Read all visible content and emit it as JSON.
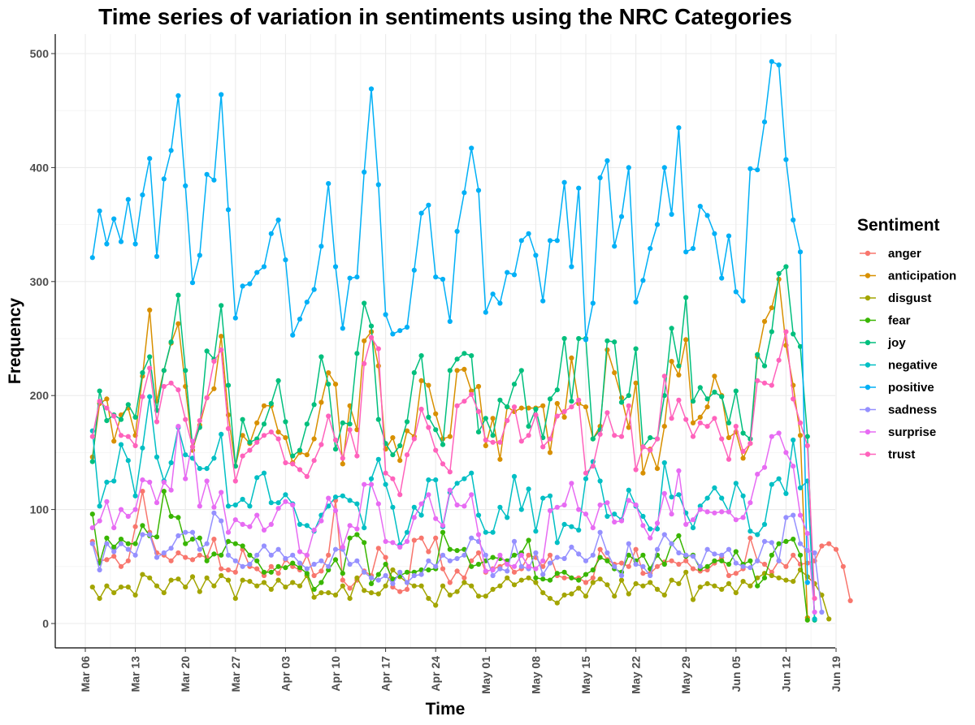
{
  "chart_data": {
    "type": "line",
    "title": "Time series of variation in sentiments using the NRC Categories",
    "xlabel": "Time",
    "ylabel": "Frequency",
    "x_start": "2022-03-07",
    "ylim": [
      0,
      500
    ],
    "y_ticks": [
      0,
      100,
      200,
      300,
      400,
      500
    ],
    "x_tick_labels": [
      "Mar 06",
      "Mar 13",
      "Mar 20",
      "Mar 27",
      "Apr 03",
      "Apr 10",
      "Apr 17",
      "Apr 24",
      "May 01",
      "May 08",
      "May 15",
      "May 22",
      "May 29",
      "Jun 05",
      "Jun 12",
      "Jun 19"
    ],
    "x_tick_dates": [
      "2022-03-06",
      "2022-03-13",
      "2022-03-20",
      "2022-03-27",
      "2022-04-03",
      "2022-04-10",
      "2022-04-17",
      "2022-04-24",
      "2022-05-01",
      "2022-05-08",
      "2022-05-15",
      "2022-05-22",
      "2022-05-29",
      "2022-06-05",
      "2022-06-12",
      "2022-06-19"
    ],
    "grid": true,
    "legend_title": "Sentiment",
    "legend_position": "right",
    "series": [
      {
        "name": "anger",
        "color": "#F8766D",
        "values": [
          72,
          55,
          56,
          59,
          50,
          55,
          85,
          116,
          80,
          62,
          60,
          55,
          62,
          58,
          56,
          60,
          58,
          74,
          48,
          47,
          45,
          65,
          50,
          48,
          42,
          50,
          44,
          56,
          50,
          47,
          60,
          42,
          46,
          60,
          108,
          38,
          31,
          38,
          46,
          42,
          66,
          58,
          32,
          28,
          30,
          73,
          75,
          63,
          75,
          48,
          36,
          46,
          40,
          55,
          62,
          45,
          48,
          50,
          54,
          45,
          48,
          60,
          58,
          50,
          60,
          42,
          40,
          40,
          40,
          36,
          40,
          65,
          56,
          52,
          53,
          50,
          65,
          44,
          44,
          50,
          54,
          55,
          52,
          55,
          48,
          46,
          47,
          53,
          58,
          42,
          44,
          48,
          75,
          55,
          52,
          45,
          55,
          50,
          60,
          52,
          53,
          55,
          68,
          70,
          65,
          50,
          20
        ]
      },
      {
        "name": "anticipation",
        "color": "#D89000",
        "values": [
          146,
          193,
          197,
          160,
          183,
          189,
          165,
          217,
          275,
          195,
          222,
          246,
          263,
          208,
          152,
          174,
          198,
          206,
          252,
          183,
          138,
          165,
          158,
          176,
          191,
          191,
          168,
          163,
          141,
          150,
          148,
          162,
          194,
          220,
          210,
          140,
          191,
          170,
          248,
          256,
          226,
          153,
          163,
          143,
          169,
          164,
          213,
          209,
          184,
          162,
          164,
          222,
          223,
          204,
          208,
          156,
          180,
          144,
          190,
          186,
          189,
          189,
          189,
          191,
          150,
          193,
          181,
          233,
          193,
          190,
          162,
          173,
          240,
          220,
          198,
          172,
          211,
          132,
          153,
          136,
          173,
          230,
          218,
          249,
          176,
          181,
          190,
          217,
          200,
          163,
          168,
          145,
          158,
          234,
          265,
          277,
          302,
          244,
          209,
          165,
          5
        ]
      },
      {
        "name": "disgust",
        "color": "#A3A500",
        "values": [
          32,
          22,
          33,
          27,
          32,
          32,
          25,
          43,
          40,
          33,
          27,
          38,
          39,
          32,
          41,
          28,
          40,
          33,
          42,
          38,
          22,
          38,
          37,
          33,
          36,
          30,
          38,
          32,
          36,
          33,
          42,
          23,
          27,
          27,
          25,
          33,
          22,
          40,
          29,
          27,
          26,
          33,
          47,
          41,
          36,
          33,
          33,
          22,
          16,
          33,
          25,
          28,
          36,
          33,
          24,
          24,
          30,
          33,
          40,
          34,
          38,
          40,
          36,
          27,
          22,
          18,
          25,
          26,
          31,
          24,
          36,
          39,
          34,
          24,
          38,
          26,
          35,
          33,
          36,
          30,
          25,
          38,
          35,
          45,
          21,
          32,
          35,
          33,
          30,
          35,
          27,
          37,
          33,
          40,
          44,
          42,
          40,
          38,
          37,
          47,
          41,
          35,
          25,
          4
        ]
      },
      {
        "name": "fear",
        "color": "#39B600",
        "values": [
          96,
          53,
          75,
          67,
          74,
          70,
          70,
          86,
          77,
          76,
          116,
          94,
          93,
          70,
          74,
          75,
          55,
          61,
          60,
          72,
          70,
          68,
          60,
          55,
          45,
          45,
          50,
          49,
          53,
          49,
          44,
          30,
          36,
          47,
          56,
          44,
          75,
          78,
          71,
          35,
          43,
          52,
          39,
          42,
          45,
          45,
          47,
          47,
          48,
          80,
          65,
          64,
          65,
          50,
          52,
          55,
          58,
          57,
          55,
          60,
          62,
          73,
          40,
          39,
          38,
          44,
          45,
          40,
          38,
          43,
          47,
          58,
          55,
          48,
          45,
          60,
          55,
          60,
          48,
          60,
          52,
          70,
          77,
          59,
          60,
          48,
          50,
          55,
          55,
          52,
          63,
          52,
          55,
          33,
          40,
          60,
          70,
          72,
          74,
          60,
          3
        ]
      },
      {
        "name": "joy",
        "color": "#00BF7D",
        "values": [
          142,
          204,
          178,
          183,
          179,
          192,
          181,
          220,
          234,
          187,
          222,
          247,
          288,
          222,
          155,
          172,
          239,
          232,
          279,
          209,
          138,
          179,
          159,
          162,
          175,
          193,
          213,
          177,
          147,
          152,
          175,
          192,
          234,
          210,
          153,
          176,
          175,
          237,
          281,
          261,
          179,
          158,
          148,
          156,
          177,
          220,
          235,
          181,
          170,
          157,
          222,
          232,
          237,
          235,
          168,
          180,
          165,
          196,
          190,
          210,
          222,
          173,
          188,
          163,
          197,
          205,
          250,
          195,
          250,
          250,
          162,
          170,
          248,
          247,
          194,
          200,
          241,
          155,
          163,
          162,
          200,
          259,
          226,
          286,
          195,
          207,
          197,
          203,
          199,
          176,
          204,
          167,
          162,
          236,
          226,
          256,
          307,
          313,
          254,
          243,
          164,
          3
        ]
      },
      {
        "name": "negative",
        "color": "#00BFC4",
        "values": [
          169,
          103,
          124,
          125,
          157,
          143,
          112,
          154,
          199,
          146,
          125,
          141,
          172,
          148,
          145,
          136,
          136,
          145,
          166,
          103,
          104,
          109,
          103,
          128,
          132,
          106,
          106,
          113,
          105,
          87,
          86,
          81,
          95,
          103,
          111,
          112,
          108,
          105,
          84,
          127,
          144,
          122,
          102,
          69,
          80,
          102,
          95,
          126,
          126,
          85,
          115,
          123,
          127,
          132,
          95,
          80,
          80,
          102,
          93,
          129,
          100,
          118,
          81,
          110,
          112,
          71,
          87,
          85,
          82,
          127,
          142,
          125,
          94,
          96,
          91,
          117,
          103,
          94,
          83,
          83,
          141,
          111,
          113,
          97,
          84,
          103,
          110,
          119,
          110,
          98,
          123,
          112,
          81,
          78,
          87,
          122,
          127,
          114,
          161,
          119,
          125,
          4
        ]
      },
      {
        "name": "positive",
        "color": "#00B0F6",
        "values": [
          321,
          362,
          333,
          355,
          335,
          372,
          333,
          376,
          408,
          322,
          390,
          415,
          463,
          384,
          299,
          323,
          394,
          389,
          464,
          363,
          268,
          296,
          298,
          308,
          313,
          342,
          354,
          319,
          253,
          267,
          282,
          293,
          331,
          386,
          313,
          259,
          303,
          304,
          396,
          469,
          385,
          271,
          254,
          257,
          260,
          310,
          360,
          367,
          304,
          302,
          265,
          344,
          378,
          417,
          380,
          273,
          289,
          281,
          308,
          306,
          336,
          342,
          323,
          283,
          336,
          336,
          387,
          313,
          382,
          249,
          281,
          391,
          406,
          331,
          357,
          400,
          282,
          301,
          329,
          350,
          400,
          359,
          435,
          326,
          329,
          366,
          358,
          342,
          303,
          340,
          291,
          283,
          399,
          398,
          440,
          493,
          490,
          407,
          354,
          326,
          36
        ]
      },
      {
        "name": "sadness",
        "color": "#9590FF",
        "values": [
          70,
          47,
          70,
          63,
          70,
          65,
          60,
          78,
          78,
          58,
          62,
          66,
          77,
          80,
          80,
          65,
          70,
          97,
          90,
          60,
          55,
          50,
          52,
          60,
          68,
          60,
          65,
          57,
          60,
          53,
          48,
          52,
          55,
          50,
          65,
          65,
          52,
          55,
          45,
          40,
          38,
          42,
          35,
          45,
          36,
          42,
          43,
          55,
          50,
          60,
          55,
          57,
          60,
          75,
          72,
          60,
          42,
          48,
          46,
          72,
          50,
          48,
          62,
          43,
          53,
          58,
          57,
          67,
          61,
          55,
          60,
          80,
          62,
          50,
          42,
          70,
          52,
          50,
          42,
          65,
          78,
          70,
          62,
          60,
          59,
          50,
          65,
          61,
          60,
          65,
          53,
          50,
          49,
          55,
          72,
          71,
          55,
          93,
          95,
          70,
          64,
          62,
          10
        ]
      },
      {
        "name": "surprise",
        "color": "#E76BF3",
        "values": [
          84,
          90,
          107,
          84,
          100,
          94,
          100,
          126,
          124,
          106,
          124,
          117,
          173,
          127,
          160,
          103,
          125,
          102,
          115,
          80,
          91,
          87,
          85,
          95,
          82,
          87,
          101,
          107,
          104,
          63,
          60,
          82,
          90,
          110,
          99,
          67,
          86,
          83,
          122,
          122,
          105,
          72,
          71,
          67,
          72,
          93,
          105,
          113,
          92,
          86,
          117,
          104,
          103,
          113,
          78,
          46,
          47,
          60,
          52,
          50,
          60,
          50,
          48,
          55,
          99,
          102,
          104,
          123,
          100,
          96,
          84,
          104,
          106,
          89,
          90,
          108,
          104,
          86,
          75,
          88,
          114,
          96,
          134,
          87,
          91,
          100,
          98,
          97,
          98,
          98,
          91,
          93,
          106,
          131,
          137,
          164,
          167,
          150,
          138,
          95,
          79,
          10
        ]
      },
      {
        "name": "trust",
        "color": "#FF62BC",
        "values": [
          164,
          195,
          189,
          182,
          165,
          164,
          156,
          199,
          224,
          177,
          208,
          211,
          205,
          179,
          155,
          178,
          198,
          230,
          240,
          171,
          125,
          147,
          152,
          159,
          165,
          168,
          162,
          141,
          140,
          135,
          129,
          143,
          157,
          182,
          161,
          145,
          170,
          147,
          228,
          251,
          241,
          132,
          127,
          113,
          148,
          162,
          188,
          172,
          152,
          140,
          133,
          191,
          195,
          201,
          186,
          161,
          159,
          159,
          178,
          190,
          160,
          165,
          183,
          155,
          162,
          182,
          186,
          190,
          196,
          132,
          138,
          166,
          185,
          165,
          164,
          191,
          135,
          155,
          152,
          162,
          217,
          180,
          196,
          179,
          164,
          176,
          173,
          180,
          162,
          144,
          173,
          151,
          158,
          213,
          211,
          209,
          231,
          256,
          197,
          176,
          156,
          22
        ]
      }
    ]
  }
}
